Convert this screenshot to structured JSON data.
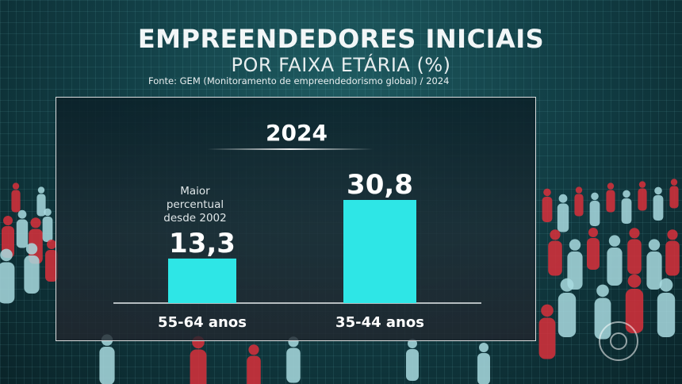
{
  "header": {
    "title": "EMPREENDEDORES INICIAIS",
    "subtitle": "POR FAIXA ETÁRIA (%)",
    "source": "Fonte: GEM (Monitoramento de empreendedorismo global) / 2024"
  },
  "chart_data": {
    "type": "bar",
    "title": "2024",
    "categories": [
      "55-64 anos",
      "35-44 anos"
    ],
    "values": [
      13.3,
      30.8
    ],
    "value_labels": [
      "13,3",
      "30,8"
    ],
    "annotation": "Maior percentual desde 2002",
    "bar_color": "#2ee6e6",
    "grid": false,
    "legend": "none"
  },
  "colors": {
    "crowd_red": "#d9303b",
    "crowd_cyan": "#a9dbe0"
  },
  "icons": {
    "logo": "globo-logo-icon"
  }
}
